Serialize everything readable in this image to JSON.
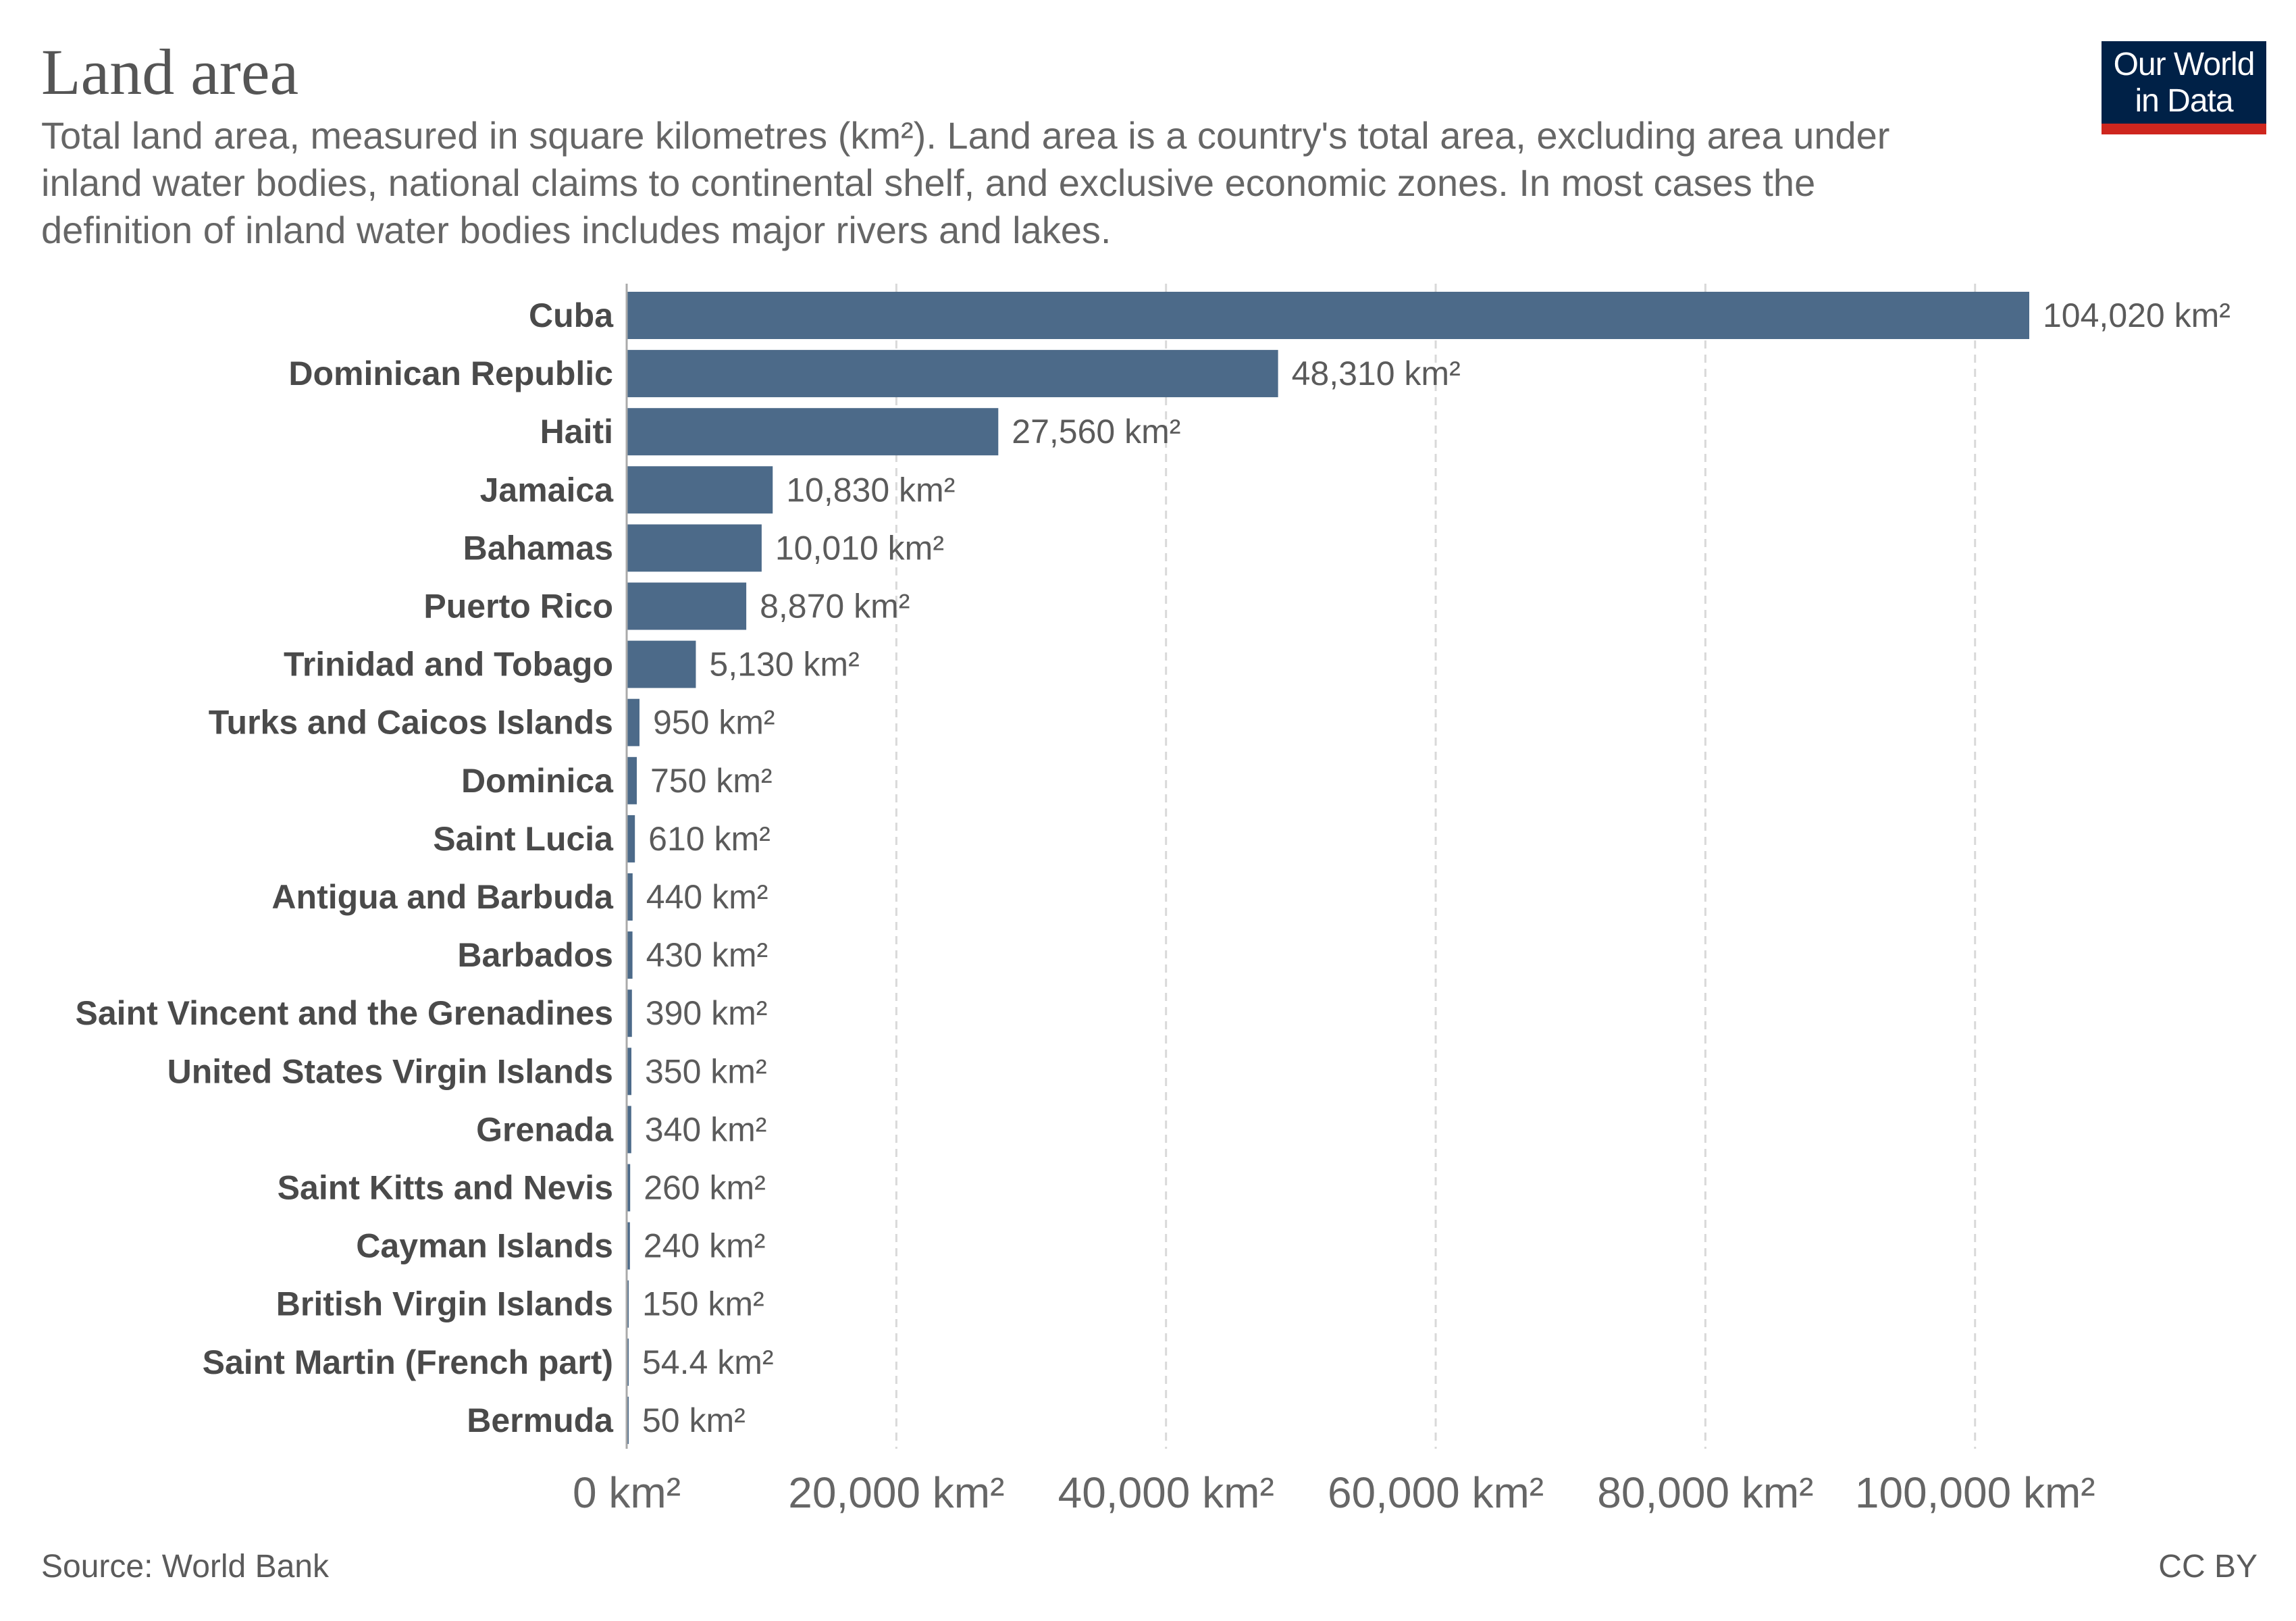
{
  "header": {
    "title": "Land area",
    "subtitle": "Total land area, measured in square kilometres (km²). Land area is a country's total area, excluding area under inland water bodies, national claims to continental shelf, and exclusive economic zones. In most cases the definition of inland water bodies includes major rivers and lakes.",
    "logo_line1": "Our World",
    "logo_line2": "in Data"
  },
  "footer": {
    "source": "Source: World Bank",
    "license": "CC BY"
  },
  "colors": {
    "bar": "#4c6a89",
    "grid": "#d9d9d9",
    "axis": "#aaaaaa",
    "category_label": "#4a4a4a",
    "value_label": "#5b5b5b",
    "logo_background": "#002147",
    "logo_accent": "#ce261e"
  },
  "chart_data": {
    "type": "bar",
    "orientation": "horizontal",
    "unit": "km²",
    "categories": [
      "Cuba",
      "Dominican Republic",
      "Haiti",
      "Jamaica",
      "Bahamas",
      "Puerto Rico",
      "Trinidad and Tobago",
      "Turks and Caicos Islands",
      "Dominica",
      "Saint Lucia",
      "Antigua and Barbuda",
      "Barbados",
      "Saint Vincent and the Grenadines",
      "United States Virgin Islands",
      "Grenada",
      "Saint Kitts and Nevis",
      "Cayman Islands",
      "British Virgin Islands",
      "Saint Martin (French part)",
      "Bermuda"
    ],
    "values": [
      104020,
      48310,
      27560,
      10830,
      10010,
      8870,
      5130,
      950,
      750,
      610,
      440,
      430,
      390,
      350,
      340,
      260,
      240,
      150,
      54.4,
      50
    ],
    "value_labels": [
      "104,020 km²",
      "48,310 km²",
      "27,560 km²",
      "10,830 km²",
      "10,010 km²",
      "8,870 km²",
      "5,130 km²",
      "950 km²",
      "750 km²",
      "610 km²",
      "440 km²",
      "430 km²",
      "390 km²",
      "350 km²",
      "340 km²",
      "260 km²",
      "240 km²",
      "150 km²",
      "54.4 km²",
      "50 km²"
    ],
    "xlim": [
      0,
      104020
    ],
    "xticks": [
      0,
      20000,
      40000,
      60000,
      80000,
      100000
    ],
    "xtick_labels": [
      "0 km²",
      "20,000 km²",
      "40,000 km²",
      "60,000 km²",
      "80,000 km²",
      "100,000 km²"
    ],
    "grid": "vertical dashed",
    "legend": "none"
  }
}
